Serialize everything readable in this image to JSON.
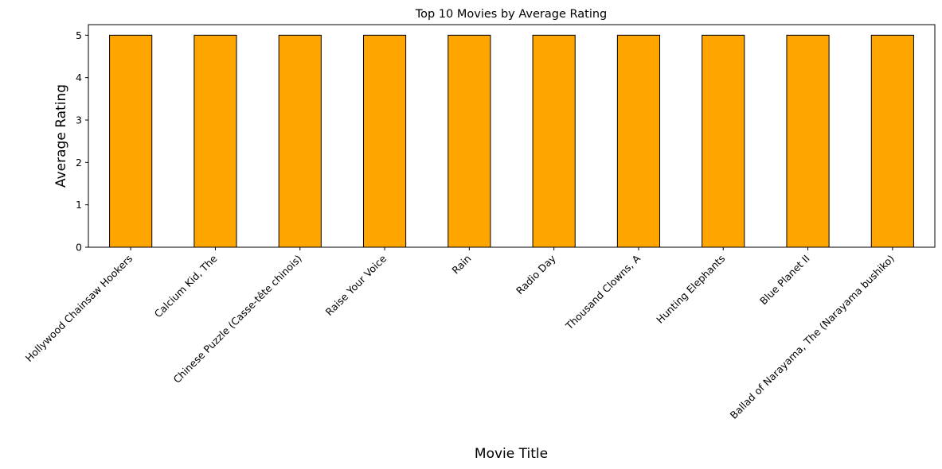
{
  "chart_data": {
    "type": "bar",
    "title": "Top 10 Movies by Average Rating",
    "xlabel": "Movie Title",
    "ylabel": "Average Rating",
    "categories": [
      "Hollywood Chainsaw Hookers",
      "Calcium Kid, The",
      "Chinese Puzzle (Casse-tête chinois)",
      "Raise Your Voice",
      "Rain",
      "Radio Day",
      "Thousand Clowns, A",
      "Hunting Elephants",
      "Blue Planet II",
      "Ballad of Narayama, The (Narayama bushiko)"
    ],
    "values": [
      5,
      5,
      5,
      5,
      5,
      5,
      5,
      5,
      5,
      5
    ],
    "yticks": [
      "0",
      "1",
      "2",
      "3",
      "4",
      "5"
    ],
    "ylim": [
      0,
      5.25
    ],
    "grid": false,
    "legend": "none",
    "colors": {
      "bar_fill": "#FFA500",
      "bar_edge": "#000000"
    }
  }
}
